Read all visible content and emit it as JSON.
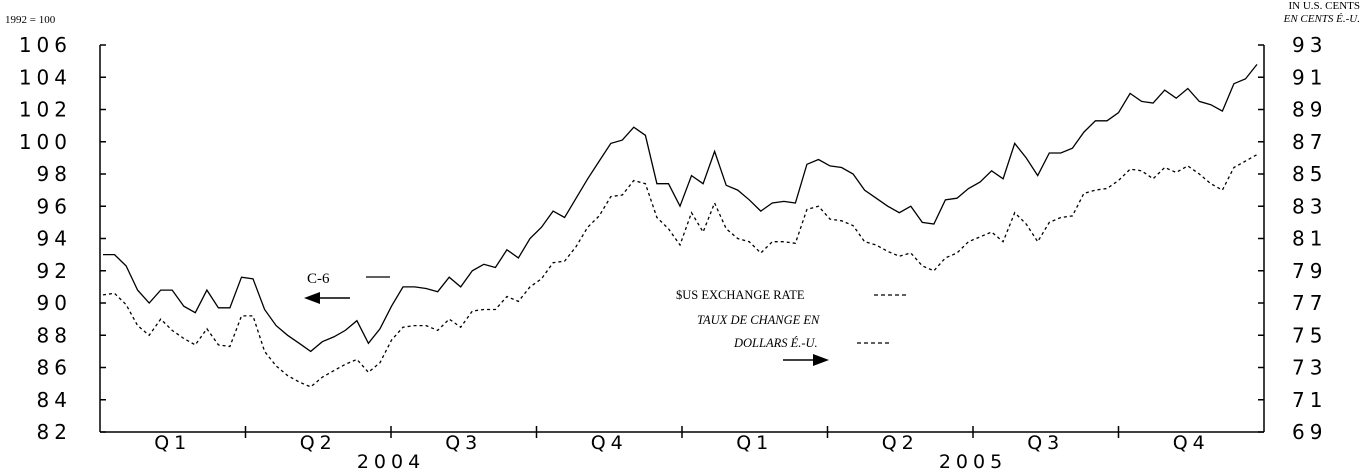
{
  "chart_data": {
    "type": "line",
    "index_note": "1992 = 100",
    "right_axis_title": [
      "IN U.S. CENTS",
      "EN CENTS É.-U."
    ],
    "left_axis": {
      "ylim": [
        82,
        106
      ],
      "ticks": [
        "106",
        "104",
        "102",
        "100",
        "98",
        "96",
        "94",
        "92",
        "90",
        "88",
        "86",
        "84",
        "82"
      ]
    },
    "right_axis": {
      "ylim": [
        69,
        93
      ],
      "ticks": [
        "93",
        "91",
        "89",
        "87",
        "85",
        "83",
        "81",
        "79",
        "77",
        "75",
        "73",
        "71",
        "69"
      ]
    },
    "quarters": [
      "Q1",
      "Q2",
      "Q3",
      "Q4",
      "Q1",
      "Q2",
      "Q3",
      "Q4"
    ],
    "years": [
      "2004",
      "2005"
    ],
    "series": [
      {
        "name": "C-6",
        "axis": "left",
        "values": [
          93.0,
          93.0,
          92.3,
          90.8,
          90.0,
          90.8,
          90.8,
          89.8,
          89.4,
          90.8,
          89.7,
          89.7,
          91.6,
          91.5,
          89.6,
          88.6,
          88.0,
          87.5,
          87.0,
          87.6,
          87.9,
          88.3,
          88.9,
          87.5,
          88.4,
          89.8,
          91.0,
          91.0,
          90.9,
          90.7,
          91.6,
          91.0,
          92.0,
          92.4,
          92.2,
          93.3,
          92.8,
          94.0,
          94.7,
          95.7,
          95.3,
          96.5,
          97.7,
          98.8,
          99.9,
          100.1,
          100.9,
          100.4,
          97.4,
          97.4,
          96.0,
          97.9,
          97.4,
          99.4,
          97.3,
          97.0,
          96.4,
          95.7,
          96.2,
          96.3,
          96.2,
          98.6,
          98.9,
          98.5,
          98.4,
          98.0,
          97.0,
          96.5,
          96.0,
          95.6,
          96.0,
          95.0,
          94.9,
          96.4,
          96.5,
          97.1,
          97.5,
          98.2,
          97.7,
          99.9,
          99.0,
          97.9,
          99.3,
          99.3,
          99.6,
          100.6,
          101.3,
          101.3,
          101.8,
          103.0,
          102.5,
          102.4,
          103.2,
          102.7,
          103.3,
          102.5,
          102.3,
          101.9,
          103.6,
          103.9,
          104.8
        ]
      },
      {
        "name": "$US EXCHANGE RATE",
        "name_fr": "TAUX DE CHANGE EN DOLLARS É.-U.",
        "axis": "right",
        "values": [
          77.5,
          77.6,
          76.9,
          75.6,
          75.0,
          76.0,
          75.3,
          74.8,
          74.4,
          75.4,
          74.4,
          74.3,
          76.2,
          76.2,
          74.0,
          73.1,
          72.5,
          72.1,
          71.8,
          72.4,
          72.8,
          73.2,
          73.5,
          72.7,
          73.3,
          74.7,
          75.5,
          75.6,
          75.6,
          75.3,
          76.0,
          75.5,
          76.5,
          76.6,
          76.6,
          77.4,
          77.1,
          78.0,
          78.5,
          79.5,
          79.6,
          80.5,
          81.7,
          82.4,
          83.6,
          83.7,
          84.6,
          84.4,
          82.3,
          81.6,
          80.6,
          82.6,
          81.4,
          83.2,
          81.6,
          81.0,
          80.8,
          80.1,
          80.8,
          80.8,
          80.7,
          82.8,
          83.0,
          82.2,
          82.1,
          81.8,
          80.8,
          80.6,
          80.2,
          79.9,
          80.1,
          79.3,
          79.0,
          79.8,
          80.1,
          80.8,
          81.1,
          81.4,
          80.8,
          82.6,
          81.9,
          80.8,
          82.0,
          82.3,
          82.4,
          83.8,
          84.0,
          84.1,
          84.6,
          85.3,
          85.2,
          84.7,
          85.4,
          85.1,
          85.5,
          85.0,
          84.4,
          84.0,
          85.4,
          85.8,
          86.2
        ]
      }
    ],
    "legend": {
      "c6_label": "C-6",
      "fx_label_en": "$US EXCHANGE RATE",
      "fx_label_fr_line1": "TAUX DE CHANGE EN",
      "fx_label_fr_line2": "DOLLARS É.-U."
    }
  }
}
